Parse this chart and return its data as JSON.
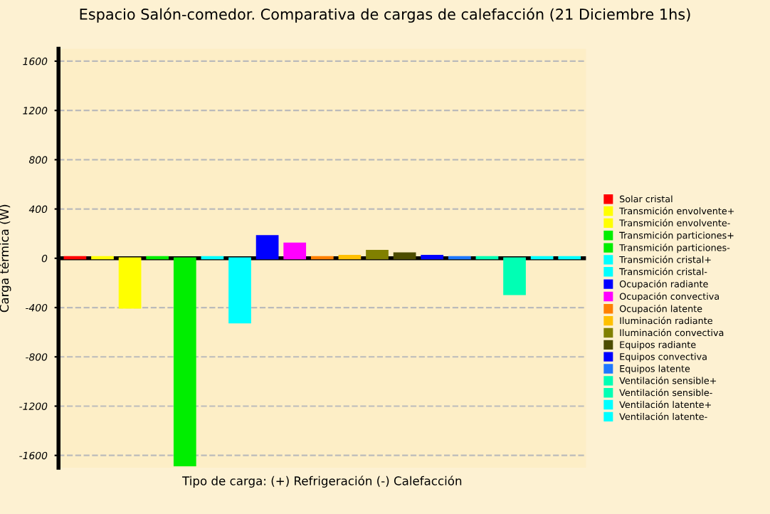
{
  "chart_data": {
    "type": "bar",
    "title": "Espacio Salón-comedor. Comparativa de cargas de calefacción (21 Diciembre 1hs)",
    "xlabel": "Tipo de carga: (+) Refrigeración (-) Calefacción",
    "ylabel": "Carga térmica (W)",
    "categories": [
      null,
      null,
      null,
      null,
      null,
      null,
      null,
      null,
      null,
      null,
      null,
      null,
      null,
      null,
      null,
      null,
      null,
      null,
      null
    ],
    "series": [
      {
        "name": "Solar cristal",
        "color": "#ff0000",
        "values": [
          10,
          null,
          null,
          null,
          null,
          null,
          null,
          null,
          null,
          null,
          null,
          null,
          null,
          null,
          null,
          null,
          null,
          null,
          null
        ]
      },
      {
        "name": "Transmición envolvente+",
        "color": "#ffff00",
        "values": [
          null,
          10,
          null,
          null,
          null,
          null,
          null,
          null,
          null,
          null,
          null,
          null,
          null,
          null,
          null,
          null,
          null,
          null,
          null
        ]
      },
      {
        "name": "Transmición envolvente-",
        "color": "#ffff00",
        "values": [
          null,
          null,
          -400,
          null,
          null,
          null,
          null,
          null,
          null,
          null,
          null,
          null,
          null,
          null,
          null,
          null,
          null,
          null,
          null
        ]
      },
      {
        "name": "Transmición particiones+",
        "color": "#00ee00",
        "values": [
          null,
          null,
          null,
          10,
          null,
          null,
          null,
          null,
          null,
          null,
          null,
          null,
          null,
          null,
          null,
          null,
          null,
          null,
          null
        ]
      },
      {
        "name": "Transmición particiones-",
        "color": "#00ee00",
        "values": [
          null,
          null,
          null,
          null,
          -1680,
          null,
          null,
          null,
          null,
          null,
          null,
          null,
          null,
          null,
          null,
          null,
          null,
          null,
          null
        ]
      },
      {
        "name": "Transmición cristal+",
        "color": "#00ffff",
        "values": [
          null,
          null,
          null,
          null,
          null,
          10,
          null,
          null,
          null,
          null,
          null,
          null,
          null,
          null,
          null,
          null,
          null,
          null,
          null
        ]
      },
      {
        "name": "Transmición cristal-",
        "color": "#00ffff",
        "values": [
          null,
          null,
          null,
          null,
          null,
          null,
          -520,
          null,
          null,
          null,
          null,
          null,
          null,
          null,
          null,
          null,
          null,
          null,
          null
        ]
      },
      {
        "name": "Ocupación radiante",
        "color": "#0000ff",
        "values": [
          null,
          null,
          null,
          null,
          null,
          null,
          null,
          180,
          null,
          null,
          null,
          null,
          null,
          null,
          null,
          null,
          null,
          null,
          null
        ]
      },
      {
        "name": "Ocupación convectiva",
        "color": "#ff00ff",
        "values": [
          null,
          null,
          null,
          null,
          null,
          null,
          null,
          null,
          120,
          null,
          null,
          null,
          null,
          null,
          null,
          null,
          null,
          null,
          null
        ]
      },
      {
        "name": "Ocupación latente",
        "color": "#ff8000",
        "values": [
          null,
          null,
          null,
          null,
          null,
          null,
          null,
          null,
          null,
          10,
          null,
          null,
          null,
          null,
          null,
          null,
          null,
          null,
          null
        ]
      },
      {
        "name": "Iluminación radiante",
        "color": "#ffc000",
        "values": [
          null,
          null,
          null,
          null,
          null,
          null,
          null,
          null,
          null,
          null,
          20,
          null,
          null,
          null,
          null,
          null,
          null,
          null,
          null
        ]
      },
      {
        "name": "Iluminación convectiva",
        "color": "#808000",
        "values": [
          null,
          null,
          null,
          null,
          null,
          null,
          null,
          null,
          null,
          null,
          null,
          60,
          null,
          null,
          null,
          null,
          null,
          null,
          null
        ]
      },
      {
        "name": "Equipos radiante",
        "color": "#4d4d00",
        "values": [
          null,
          null,
          null,
          null,
          null,
          null,
          null,
          null,
          null,
          null,
          null,
          null,
          40,
          null,
          null,
          null,
          null,
          null,
          null
        ]
      },
      {
        "name": "Equipos convectiva",
        "color": "#0000ff",
        "values": [
          null,
          null,
          null,
          null,
          null,
          null,
          null,
          null,
          null,
          null,
          null,
          null,
          null,
          20,
          null,
          null,
          null,
          null,
          null
        ]
      },
      {
        "name": "Equipos latente",
        "color": "#1e78ff",
        "values": [
          null,
          null,
          null,
          null,
          null,
          null,
          null,
          null,
          null,
          null,
          null,
          null,
          null,
          null,
          10,
          null,
          null,
          null,
          null
        ]
      },
      {
        "name": "Ventilación sensible+",
        "color": "#00ffb4",
        "values": [
          null,
          null,
          null,
          null,
          null,
          null,
          null,
          null,
          null,
          null,
          null,
          null,
          null,
          null,
          null,
          10,
          null,
          null,
          null
        ]
      },
      {
        "name": "Ventilación sensible-",
        "color": "#00ffb4",
        "values": [
          null,
          null,
          null,
          null,
          null,
          null,
          null,
          null,
          null,
          null,
          null,
          null,
          null,
          null,
          null,
          null,
          -290,
          null,
          null
        ]
      },
      {
        "name": "Ventilación latente+",
        "color": "#00ffff",
        "values": [
          null,
          null,
          null,
          null,
          null,
          null,
          null,
          null,
          null,
          null,
          null,
          null,
          null,
          null,
          null,
          null,
          null,
          10,
          null
        ]
      },
      {
        "name": "Ventilación latente-",
        "color": "#00ffff",
        "values": [
          null,
          null,
          null,
          null,
          null,
          null,
          null,
          null,
          null,
          null,
          null,
          null,
          null,
          null,
          null,
          null,
          null,
          null,
          10
        ]
      }
    ],
    "ylim": [
      -1700,
      1700
    ],
    "yticks": [
      -1600,
      -1200,
      -800,
      -400,
      0,
      400,
      800,
      1200,
      1600
    ],
    "grid": "y",
    "legend": "right",
    "tick_labels": "y"
  }
}
